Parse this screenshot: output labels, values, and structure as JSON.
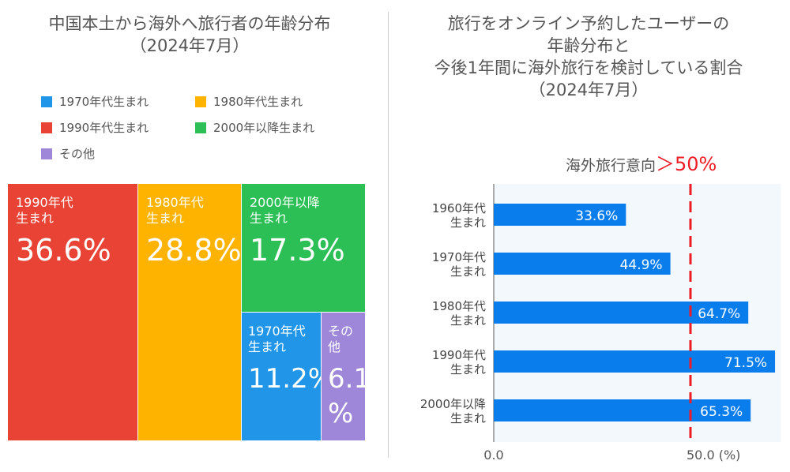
{
  "left": {
    "title_line1": "中国本土から海外へ旅行者の年齢分布",
    "title_line2": "（2024年7月）",
    "legend": [
      {
        "label": "1970年代生まれ",
        "color": "#2196e8"
      },
      {
        "label": "1980年代生まれ",
        "color": "#fdb300"
      },
      {
        "label": "1990年代生まれ",
        "color": "#e84335"
      },
      {
        "label": "2000年以降生まれ",
        "color": "#2bbf55"
      },
      {
        "label": "その他",
        "color": "#9e86d8"
      }
    ]
  },
  "right": {
    "title_lines": [
      "旅行をオンライン予約したユーザーの",
      "年齢分布と",
      "今後1年間に海外旅行を検討している割合",
      "（2024年7月）"
    ],
    "annotation_label": "海外旅行意向",
    "annotation_value": "＞50%",
    "annotation_color": "#ee1c25"
  },
  "chart_data": [
    {
      "type": "treemap",
      "items": [
        {
          "label_line1": "1990年代",
          "label_line2": "生まれ",
          "value": 36.6,
          "display": "36.6%",
          "color": "#e84335"
        },
        {
          "label_line1": "1980年代",
          "label_line2": "生まれ",
          "value": 28.8,
          "display": "28.8%",
          "color": "#fdb300"
        },
        {
          "label_line1": "2000年以降",
          "label_line2": "生まれ",
          "value": 17.3,
          "display": "17.3%",
          "color": "#2bbf55"
        },
        {
          "label_line1": "1970年代",
          "label_line2": "生まれ",
          "value": 11.2,
          "display": "11.2%",
          "color": "#2196e8"
        },
        {
          "label_line1": "その",
          "label_line2": "他",
          "value": 6.1,
          "display": "6.1\n%",
          "color": "#9e86d8"
        }
      ]
    },
    {
      "type": "bar",
      "orientation": "horizontal",
      "categories": [
        [
          "1960年代",
          "生まれ"
        ],
        [
          "1970年代",
          "生まれ"
        ],
        [
          "1980年代",
          "生まれ"
        ],
        [
          "1990年代",
          "生まれ"
        ],
        [
          "2000年以降",
          "生まれ"
        ]
      ],
      "values": [
        33.6,
        44.9,
        64.7,
        71.5,
        65.3
      ],
      "data_labels": [
        "33.6%",
        "44.9%",
        "64.7%",
        "71.5%",
        "65.3%"
      ],
      "xlim": [
        0,
        73
      ],
      "xticks": [
        "0.0",
        "50.0 (%)"
      ],
      "xtick_values": [
        0,
        50
      ],
      "reference_line": 50,
      "bar_color": "#0a7ded",
      "ref_color": "#ee1c25",
      "plot_bg": "#f3f8fd"
    }
  ]
}
